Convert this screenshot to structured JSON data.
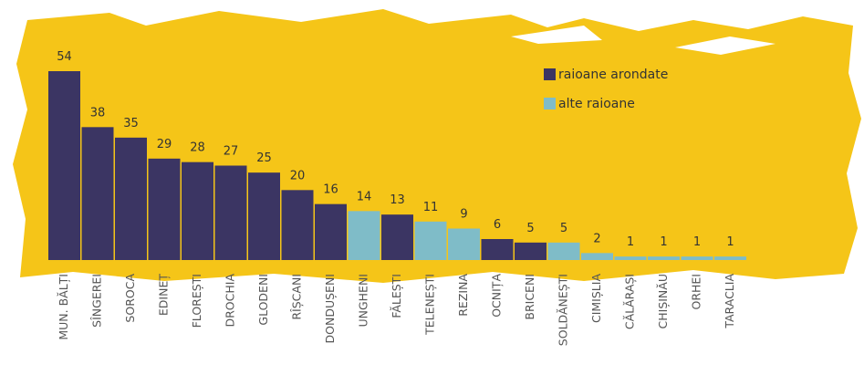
{
  "chart_data": {
    "type": "bar",
    "categories": [
      "MUN. BĂLȚI",
      "SÎNGEREI",
      "SOROCA",
      "EDINEȚ",
      "FLOREȘTI",
      "DROCHIA",
      "GLODENI",
      "RÎȘCANI",
      "DONDUȘENI",
      "UNGHENI",
      "FĂLEȘTI",
      "TELENEȘTI",
      "REZINA",
      "OCNIȚA",
      "BRICENI",
      "SOLDĂNEȘTI",
      "CIMIȘLIA",
      "CĂLĂRAȘI",
      "CHIȘINĂU",
      "ORHEI",
      "TARACLIA"
    ],
    "series": [
      {
        "name": "raioane arondate",
        "color": "#3b3563",
        "values": [
          54,
          38,
          35,
          29,
          28,
          27,
          25,
          20,
          16,
          null,
          13,
          null,
          null,
          6,
          5,
          null,
          null,
          null,
          null,
          null,
          null
        ]
      },
      {
        "name": "alte raioane",
        "color": "#7fbcc8",
        "values": [
          null,
          null,
          null,
          null,
          null,
          null,
          null,
          null,
          null,
          14,
          null,
          11,
          9,
          null,
          null,
          5,
          2,
          1,
          1,
          1,
          1
        ]
      }
    ]
  }
}
